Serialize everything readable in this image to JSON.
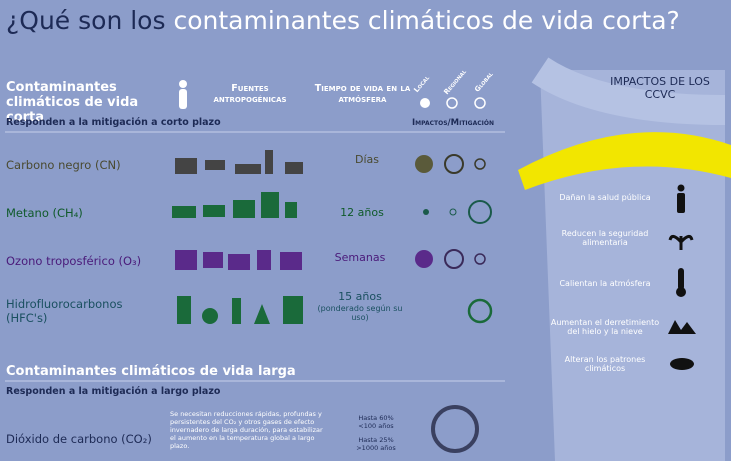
{
  "header": {
    "title_lead": "¿Qué son los",
    "title_highlight": "contaminantes climáticos de vida corta?"
  },
  "short_lived": {
    "heading": "Contaminantes climáticos de vida corta",
    "subheading": "Responden a la mitigación a corto plazo",
    "col_sources": "Fuentes antropogénicas",
    "col_lifetime": "Tiempo de vida en la atmósfera",
    "scales": [
      "Local",
      "Regional",
      "Global"
    ],
    "col_impacts": "Impactos/Mitigación",
    "rows": [
      {
        "name": "Carbono negro (CN)",
        "lifetime": "Días"
      },
      {
        "name": "Metano (CH₄)",
        "lifetime": "12 años"
      },
      {
        "name": "Ozono troposférico (O₃)",
        "lifetime": "Semanas"
      },
      {
        "name": "Hidrofluorocarbonos (HFC's)",
        "lifetime": "15 años",
        "note": "(ponderado según su uso)"
      }
    ]
  },
  "long_lived": {
    "heading": "Contaminantes climáticos de vida larga",
    "subheading": "Responden a la mitigación a largo plazo",
    "row": {
      "name": "Dióxido de carbono (CO₂)",
      "description": "Se necesitan reducciones rápidas, profundas y persistentes del CO₂ y otros gases de efecto invernadero de larga duración, para estabilizar el aumento en la temperatura global a largo plazo.",
      "lifetimes": [
        "Hasta 60% <100 años",
        "Hasta 25% >1000 años"
      ]
    }
  },
  "impacts": {
    "title": "IMPACTOS DE LOS CCVC",
    "items": [
      "Dañan la salud pública",
      "Reducen la seguridad alimentaria",
      "Calientan la atmósfera",
      "Aumentan el derretimiento del hielo y la nieve",
      "Alteran los patrones climáticos"
    ]
  }
}
